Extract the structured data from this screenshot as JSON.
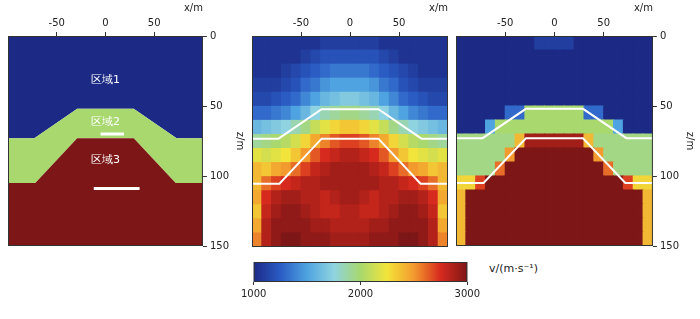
{
  "chart_data": [
    {
      "type": "model",
      "xlabel": "x/m",
      "ylabel": "z/m",
      "xlim": [
        -100,
        100
      ],
      "xticks": [
        -50,
        0,
        50
      ],
      "ylim": [
        0,
        150
      ],
      "yticks": [
        0,
        50,
        100,
        150
      ],
      "regions": [
        {
          "label": "区域1",
          "velocity": 1000
        },
        {
          "label": "区域2",
          "velocity": 2000
        },
        {
          "label": "区域3",
          "velocity": 3000
        }
      ],
      "interfaces": [
        [
          [
            -100,
            73
          ],
          [
            -73,
            73
          ],
          [
            -29,
            52
          ],
          [
            29,
            52
          ],
          [
            73,
            73
          ],
          [
            100,
            73
          ]
        ],
        [
          [
            -100,
            105
          ],
          [
            -72,
            105
          ],
          [
            -29,
            73
          ],
          [
            29,
            73
          ],
          [
            72,
            105
          ],
          [
            100,
            105
          ]
        ]
      ],
      "bars": [
        {
          "z": 70,
          "x": [
            -5,
            19
          ]
        },
        {
          "z": 109,
          "x": [
            -12,
            35
          ]
        }
      ]
    },
    {
      "type": "heatmap",
      "xlabel": "x/m",
      "tick_labels": "x",
      "xlim": [
        -100,
        100
      ],
      "xticks": [
        -50,
        0,
        50
      ],
      "ylim": [
        0,
        150
      ],
      "yticks": [
        0,
        50,
        100,
        150
      ],
      "cell_x": [
        -100,
        -90,
        -80,
        -70,
        -60,
        -50,
        -40,
        -30,
        -20,
        -10,
        0,
        10,
        20,
        30,
        40,
        50,
        60,
        70,
        80,
        90,
        100
      ],
      "cell_z": [
        0,
        10,
        20,
        30,
        40,
        50,
        60,
        70,
        80,
        90,
        100,
        110,
        120,
        130,
        140,
        150
      ],
      "cells": [
        [
          1050,
          1050,
          1050,
          1050,
          1050,
          1050,
          1050,
          1100,
          1100,
          1100,
          1100,
          1100,
          1100,
          1050,
          1050,
          1050,
          1050,
          1050,
          1050,
          1050
        ],
        [
          1050,
          1050,
          1050,
          1050,
          1050,
          1100,
          1150,
          1200,
          1200,
          1200,
          1200,
          1200,
          1200,
          1150,
          1100,
          1050,
          1050,
          1050,
          1050,
          1050
        ],
        [
          1050,
          1050,
          1050,
          1100,
          1150,
          1200,
          1250,
          1300,
          1350,
          1350,
          1350,
          1350,
          1300,
          1250,
          1200,
          1150,
          1100,
          1050,
          1050,
          1050
        ],
        [
          1100,
          1100,
          1100,
          1150,
          1200,
          1300,
          1350,
          1450,
          1500,
          1500,
          1500,
          1500,
          1450,
          1350,
          1300,
          1200,
          1150,
          1100,
          1100,
          1100
        ],
        [
          1150,
          1150,
          1200,
          1250,
          1300,
          1400,
          1500,
          1600,
          1650,
          1700,
          1700,
          1650,
          1600,
          1500,
          1400,
          1300,
          1250,
          1200,
          1150,
          1150
        ],
        [
          1300,
          1300,
          1350,
          1400,
          1500,
          1600,
          1750,
          1850,
          1900,
          1950,
          1950,
          1900,
          1850,
          1750,
          1600,
          1500,
          1400,
          1350,
          1300,
          1300
        ],
        [
          1600,
          1650,
          1700,
          1750,
          1850,
          1950,
          2100,
          2200,
          2300,
          2350,
          2350,
          2300,
          2200,
          2100,
          1950,
          1850,
          1750,
          1700,
          1650,
          1600
        ],
        [
          1900,
          1950,
          2000,
          2050,
          2150,
          2300,
          2450,
          2550,
          2650,
          2700,
          2700,
          2650,
          2550,
          2450,
          2300,
          2150,
          2050,
          2000,
          1950,
          1900
        ],
        [
          2200,
          2150,
          2200,
          2250,
          2350,
          2500,
          2650,
          2750,
          2800,
          2850,
          2850,
          2800,
          2750,
          2650,
          2500,
          2350,
          2250,
          2200,
          2150,
          2200
        ],
        [
          2400,
          2350,
          2450,
          2500,
          2600,
          2700,
          2800,
          2850,
          2900,
          2900,
          2900,
          2900,
          2850,
          2800,
          2700,
          2600,
          2500,
          2450,
          2350,
          2400
        ],
        [
          2400,
          2600,
          2700,
          2750,
          2800,
          2850,
          2850,
          2900,
          2900,
          2900,
          2900,
          2900,
          2900,
          2850,
          2850,
          2800,
          2750,
          2700,
          2600,
          2400
        ],
        [
          2450,
          2750,
          2850,
          2900,
          2900,
          2850,
          2850,
          2800,
          2850,
          2900,
          2900,
          2850,
          2800,
          2850,
          2850,
          2900,
          2900,
          2850,
          2750,
          2450
        ],
        [
          2350,
          2800,
          2900,
          2950,
          2950,
          2900,
          2850,
          2800,
          2800,
          2850,
          2850,
          2800,
          2800,
          2850,
          2900,
          2950,
          2950,
          2900,
          2800,
          2350
        ],
        [
          2450,
          2850,
          2950,
          2950,
          2950,
          2950,
          2900,
          2900,
          2850,
          2850,
          2850,
          2850,
          2900,
          2900,
          2950,
          2950,
          2950,
          2950,
          2850,
          2450
        ],
        [
          2550,
          2850,
          2950,
          3000,
          3000,
          2950,
          2950,
          2950,
          2900,
          2900,
          2900,
          2900,
          2950,
          2950,
          2950,
          3000,
          3000,
          2950,
          2850,
          2550
        ]
      ],
      "interfaces": [
        [
          [
            -100,
            73
          ],
          [
            -73,
            73
          ],
          [
            -29,
            52
          ],
          [
            29,
            52
          ],
          [
            73,
            73
          ],
          [
            100,
            73
          ]
        ],
        [
          [
            -100,
            105
          ],
          [
            -72,
            105
          ],
          [
            -29,
            73
          ],
          [
            29,
            73
          ],
          [
            72,
            105
          ],
          [
            100,
            105
          ]
        ]
      ]
    },
    {
      "type": "heatmap",
      "xlabel": "x/m",
      "ylabel": "z/m",
      "xlim": [
        -100,
        100
      ],
      "xticks": [
        -50,
        0,
        50
      ],
      "ylim": [
        0,
        150
      ],
      "yticks": [
        0,
        50,
        100,
        150
      ],
      "cell_x": [
        -100,
        -90,
        -80,
        -70,
        -60,
        -50,
        -40,
        -30,
        -20,
        -10,
        0,
        10,
        20,
        30,
        40,
        50,
        60,
        70,
        80,
        90,
        100
      ],
      "cell_z": [
        0,
        10,
        20,
        30,
        40,
        50,
        60,
        70,
        80,
        90,
        100,
        110,
        120,
        130,
        140,
        150
      ],
      "cells": [
        [
          1000,
          1000,
          1000,
          1000,
          1000,
          1000,
          1000,
          1000,
          1100,
          1100,
          1100,
          1100,
          1000,
          1000,
          1000,
          1000,
          1000,
          1000,
          1000,
          1000
        ],
        [
          1000,
          1000,
          1000,
          1000,
          1000,
          1000,
          1000,
          1000,
          1000,
          1000,
          1000,
          1000,
          1000,
          1000,
          1000,
          1000,
          1000,
          1000,
          1000,
          1000
        ],
        [
          1000,
          1000,
          1000,
          1000,
          1000,
          1000,
          1000,
          1000,
          1000,
          1000,
          1000,
          1000,
          1000,
          1000,
          1000,
          1000,
          1000,
          1000,
          1000,
          1000
        ],
        [
          1000,
          1000,
          1000,
          1000,
          1000,
          1000,
          1000,
          1000,
          1000,
          1000,
          1000,
          1000,
          1000,
          1000,
          1000,
          1000,
          1000,
          1000,
          1000,
          1000
        ],
        [
          1000,
          1000,
          1000,
          1000,
          1000,
          1000,
          1000,
          1000,
          1000,
          1000,
          1000,
          1000,
          1000,
          1000,
          1000,
          1000,
          1000,
          1000,
          1000,
          1000
        ],
        [
          1000,
          1000,
          1000,
          1000,
          1000,
          1300,
          1300,
          2000,
          2000,
          2000,
          2000,
          2000,
          2000,
          1300,
          1300,
          1000,
          1000,
          1000,
          1000,
          1000
        ],
        [
          1000,
          1000,
          1000,
          1500,
          2000,
          2000,
          2000,
          2000,
          2000,
          2000,
          2000,
          2000,
          2000,
          2000,
          2000,
          2000,
          1500,
          1000,
          1000,
          1000
        ],
        [
          1950,
          1950,
          1950,
          1950,
          1950,
          1950,
          2400,
          2900,
          2900,
          2900,
          2900,
          2900,
          2900,
          2400,
          1950,
          1950,
          1950,
          1950,
          1950,
          1950
        ],
        [
          1950,
          1950,
          1950,
          1950,
          1950,
          2500,
          3000,
          3000,
          3000,
          3000,
          3000,
          3000,
          3000,
          3000,
          2500,
          1950,
          1950,
          1950,
          1950,
          1950
        ],
        [
          1950,
          1950,
          1950,
          1950,
          2600,
          3000,
          3000,
          3000,
          3000,
          3000,
          3000,
          3000,
          3000,
          3000,
          3000,
          2600,
          1950,
          1950,
          1950,
          1950
        ],
        [
          2300,
          2300,
          2700,
          3000,
          3000,
          3000,
          3000,
          3000,
          3000,
          3000,
          3000,
          3000,
          3000,
          3000,
          3000,
          3000,
          3000,
          2700,
          2300,
          2300
        ],
        [
          2400,
          3000,
          3000,
          3000,
          3000,
          3000,
          3000,
          3000,
          3000,
          3000,
          3000,
          3000,
          3000,
          3000,
          3000,
          3000,
          3000,
          3000,
          3000,
          2400
        ],
        [
          2400,
          3000,
          3000,
          3000,
          3000,
          3000,
          3000,
          3000,
          3000,
          3000,
          3000,
          3000,
          3000,
          3000,
          3000,
          3000,
          3000,
          3000,
          3000,
          2400
        ],
        [
          2400,
          3000,
          3000,
          3000,
          3000,
          3000,
          3000,
          3000,
          3000,
          3000,
          3000,
          3000,
          3000,
          3000,
          3000,
          3000,
          3000,
          3000,
          3000,
          2400
        ],
        [
          2400,
          3000,
          3000,
          3000,
          3000,
          3000,
          3000,
          3000,
          3000,
          3000,
          3000,
          3000,
          3000,
          3000,
          3000,
          3000,
          3000,
          3000,
          3000,
          2400
        ]
      ],
      "interfaces": [
        [
          [
            -100,
            73
          ],
          [
            -73,
            73
          ],
          [
            -29,
            52
          ],
          [
            29,
            52
          ],
          [
            73,
            73
          ],
          [
            100,
            73
          ]
        ],
        [
          [
            -100,
            105
          ],
          [
            -72,
            105
          ],
          [
            -29,
            73
          ],
          [
            29,
            73
          ],
          [
            72,
            105
          ],
          [
            100,
            105
          ]
        ]
      ]
    },
    {
      "type": "colorbar",
      "xlabel": "v/(m·s⁻¹)",
      "xlim": [
        1000,
        3000
      ],
      "xticks": [
        1000,
        2000,
        3000
      ]
    }
  ]
}
